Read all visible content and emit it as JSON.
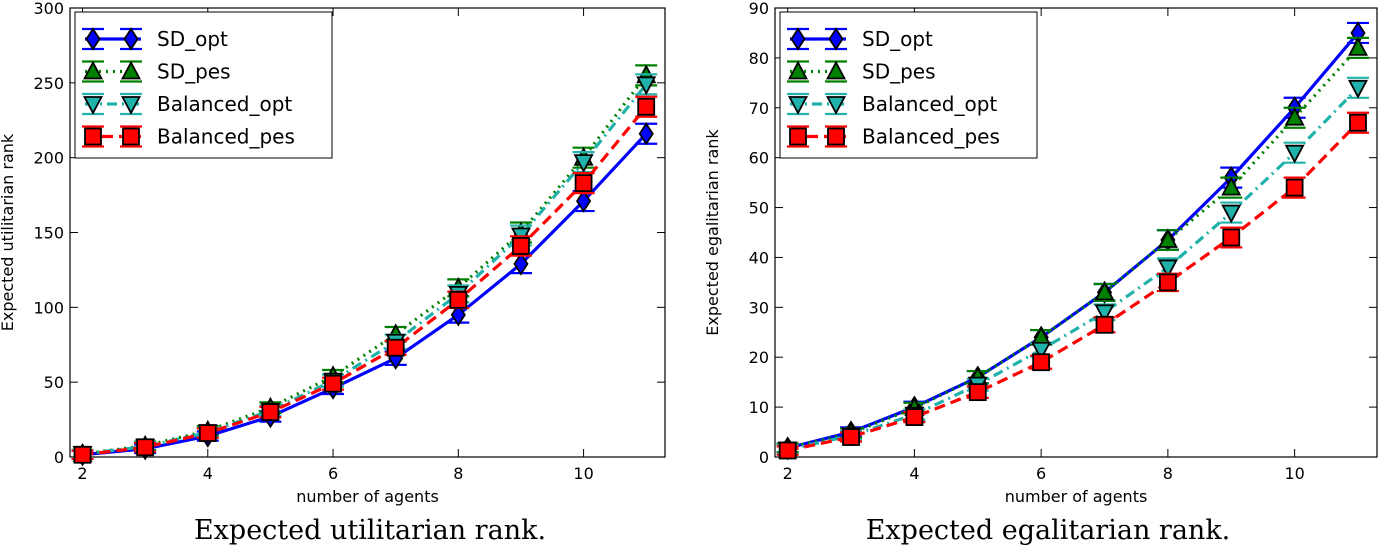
{
  "chart_data": [
    {
      "type": "line",
      "xlabel": "number of agents",
      "ylabel": "Expected utilitarian rank",
      "caption": "Expected utilitarian rank.",
      "xlim": [
        1.8,
        11.3
      ],
      "ylim": [
        0,
        300
      ],
      "xticks": [
        2,
        4,
        6,
        8,
        10
      ],
      "yticks": [
        0,
        50,
        100,
        150,
        200,
        250,
        300
      ],
      "legend_position": "top-left",
      "grid": false,
      "x": [
        2,
        3,
        4,
        5,
        6,
        7,
        8,
        9,
        10,
        11
      ],
      "series": [
        {
          "name": "SD_opt",
          "values": [
            1.5,
            5.5,
            14,
            27,
            46,
            66,
            95,
            129,
            171,
            216
          ]
        },
        {
          "name": "SD_pes",
          "values": [
            2,
            7.5,
            17.5,
            33,
            54,
            82,
            113,
            150,
            200,
            255
          ]
        },
        {
          "name": "Balanced_opt",
          "values": [
            2,
            7,
            16.5,
            31,
            51,
            77,
            109,
            148,
            197,
            249
          ]
        },
        {
          "name": "Balanced_pes",
          "values": [
            1.5,
            6.5,
            16,
            30,
            49,
            73,
            105,
            141,
            183,
            234
          ]
        }
      ]
    },
    {
      "type": "line",
      "xlabel": "number of agents",
      "ylabel": "Expected egalitarian rank",
      "caption": "Expected egalitarian rank.",
      "xlim": [
        1.8,
        11.3
      ],
      "ylim": [
        0,
        90
      ],
      "xticks": [
        2,
        4,
        6,
        8,
        10
      ],
      "yticks": [
        0,
        10,
        20,
        30,
        40,
        50,
        60,
        70,
        80,
        90
      ],
      "legend_position": "top-left",
      "grid": false,
      "x": [
        2,
        3,
        4,
        5,
        6,
        7,
        8,
        9,
        10,
        11
      ],
      "series": [
        {
          "name": "SD_opt",
          "values": [
            1.8,
            5,
            10,
            16,
            24,
            33,
            43.5,
            56,
            70,
            85
          ]
        },
        {
          "name": "SD_pes",
          "values": [
            1.8,
            4.8,
            9.8,
            16,
            24,
            33,
            43.5,
            54,
            68,
            82
          ]
        },
        {
          "name": "Balanced_opt",
          "values": [
            1.5,
            4.3,
            8.5,
            14.5,
            21.5,
            29,
            38,
            49,
            61,
            74
          ]
        },
        {
          "name": "Balanced_pes",
          "values": [
            1.3,
            4,
            8,
            13,
            19,
            26.5,
            35,
            44,
            54,
            67
          ]
        }
      ]
    }
  ],
  "styles": {
    "SD_opt": {
      "color": "#0000ff",
      "marker": "diamond",
      "dash": "solid"
    },
    "SD_pes": {
      "color": "#008000",
      "marker": "triangle-up",
      "dash": "dotted"
    },
    "Balanced_opt": {
      "color": "#20b2aa",
      "marker": "triangle-down",
      "dash": "dashdot"
    },
    "Balanced_pes": {
      "color": "#ff0000",
      "marker": "square",
      "dash": "dashed"
    }
  }
}
